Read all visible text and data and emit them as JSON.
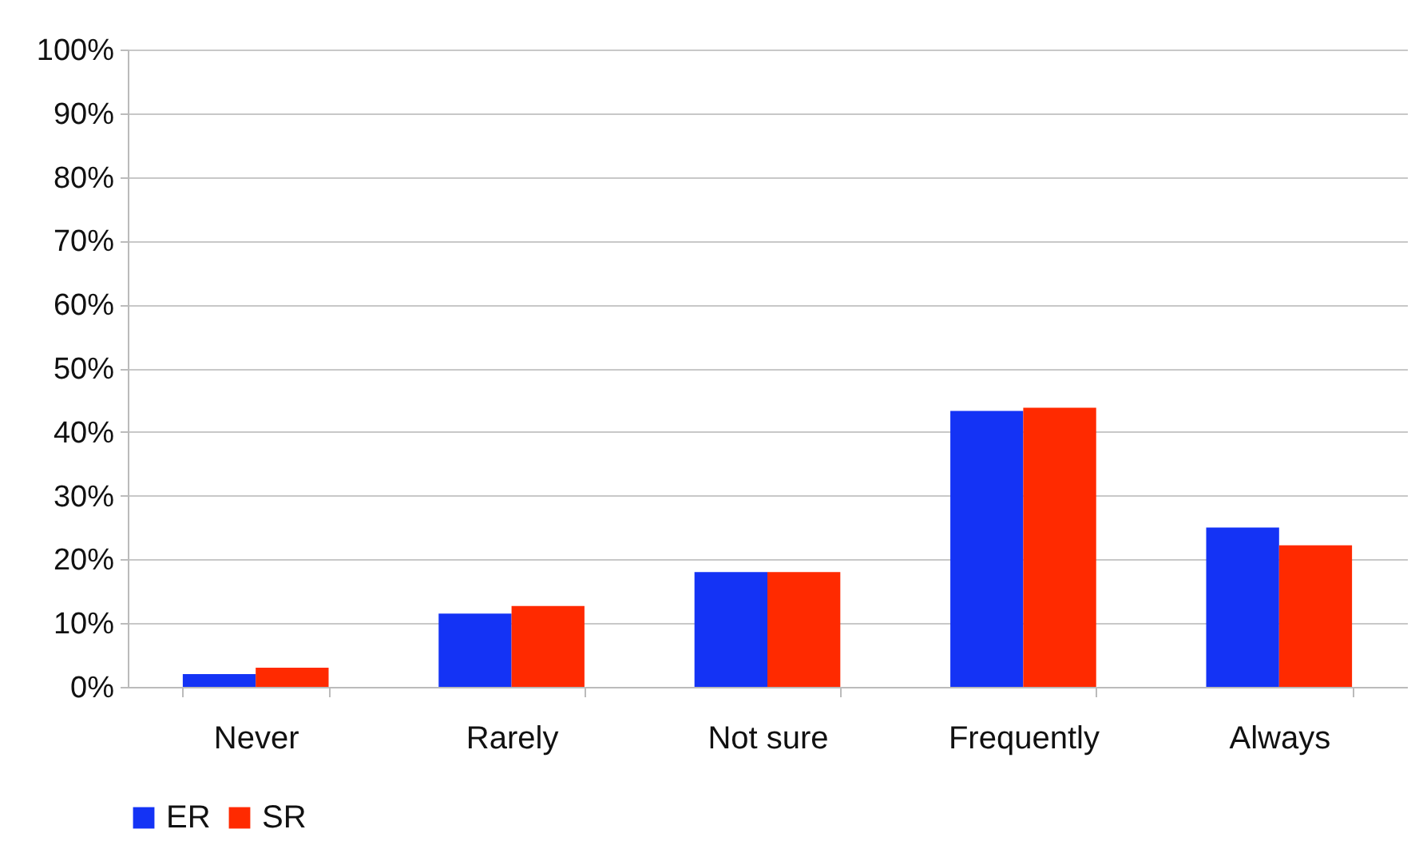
{
  "chart_data": {
    "type": "bar",
    "categories": [
      "Never",
      "Rarely",
      "Not sure",
      "Frequently",
      "Always"
    ],
    "series": [
      {
        "name": "ER",
        "color": "#1433f5",
        "values": [
          2,
          11.5,
          18,
          43.3,
          25
        ]
      },
      {
        "name": "SR",
        "color": "#ff2a00",
        "values": [
          3,
          12.7,
          18,
          43.8,
          22.2
        ]
      }
    ],
    "ylim": [
      0,
      100
    ],
    "yticks": [
      {
        "value": 0,
        "label": "0%"
      },
      {
        "value": 10,
        "label": "10%"
      },
      {
        "value": 20,
        "label": "20%"
      },
      {
        "value": 30,
        "label": "30%"
      },
      {
        "value": 40,
        "label": "40%"
      },
      {
        "value": 50,
        "label": "50%"
      },
      {
        "value": 60,
        "label": "60%"
      },
      {
        "value": 70,
        "label": "70%"
      },
      {
        "value": 80,
        "label": "80%"
      },
      {
        "value": 90,
        "label": "90%"
      },
      {
        "value": 100,
        "label": "100%"
      }
    ],
    "grid": "y",
    "legend": "bottom"
  }
}
